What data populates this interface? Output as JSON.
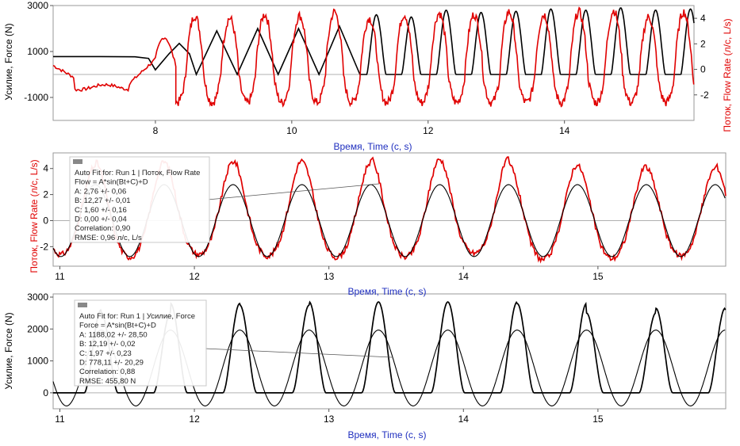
{
  "chart_data": [
    {
      "type": "line",
      "xlabel": "Время, Time (с, s)",
      "ylabel": "Усилие, Force (N)",
      "ylabel_right": "Поток, Flow Rate (л/с, L/s)",
      "xlim": [
        6.5,
        15.9
      ],
      "ylim": [
        -2000,
        3000
      ],
      "ylim_right": [
        -4,
        5
      ],
      "x_ticks": [
        8,
        10,
        12,
        14
      ],
      "y_ticks": [
        -1000,
        1000,
        3000
      ],
      "y_ticks_right": [
        -2,
        0,
        2,
        4
      ],
      "series": [
        {
          "axis": "left",
          "color": "#000000",
          "x": [
            6.5,
            7.2,
            7.7,
            7.9,
            8.0,
            8.2,
            8.35,
            8.5,
            8.6,
            8.9,
            9.2,
            9.5,
            9.8,
            10.1,
            10.4,
            10.7,
            11.0
          ],
          "y": [
            780,
            780,
            770,
            700,
            200,
            900,
            1350,
            900,
            0,
            1900,
            0,
            2000,
            0,
            2000,
            0,
            2100,
            0
          ],
          "period": 0.512,
          "phase": 11.1,
          "amplitude": 1300,
          "base_peaks": [
            2600,
            2500,
            2800,
            2700,
            2750,
            2850,
            2800,
            2900,
            2800,
            2850,
            2700,
            2700,
            2750,
            2600,
            2600,
            2500,
            2600
          ]
        },
        {
          "axis": "right",
          "color": "#e00000",
          "x": [
            6.5,
            6.8,
            7.0,
            7.3,
            7.6,
            7.9,
            8.1,
            8.3
          ],
          "y": [
            0.3,
            -0.6,
            -1.5,
            -1.4,
            -1.0,
            0.6,
            1.5,
            -2.5
          ],
          "period": 0.512,
          "phase": 8.45,
          "amplitude": 2.7,
          "peaks": [
            4.2,
            4.0,
            4.3,
            4.2,
            4.5,
            4.0,
            4.3,
            4.4,
            4.3,
            4.5,
            4.3,
            4.5,
            4.6,
            4.1,
            4.5,
            4.4
          ]
        }
      ]
    },
    {
      "type": "line",
      "xlabel": "Время, Time (с, s)",
      "ylabel": "Поток, Flow Rate (л/с, L/s)",
      "xlim": [
        10.95,
        15.95
      ],
      "ylim": [
        -3.5,
        5.2
      ],
      "x_ticks": [
        11,
        12,
        13,
        14,
        15
      ],
      "y_ticks": [
        -2,
        0,
        2,
        4
      ],
      "series": [
        {
          "name": "Flow Rate",
          "color": "#e00000",
          "data_kind": "measured",
          "peaks": [
            4.0,
            4.2,
            4.5,
            4.5,
            4.6,
            4.5,
            4.7,
            4.7,
            4.3,
            4.2
          ],
          "troughs": [
            -2.7,
            -2.6,
            -2.8,
            -2.6,
            -2.7,
            -2.8,
            -2.8,
            -2.5,
            -3.0,
            -2.9
          ]
        },
        {
          "name": "Auto Fit",
          "color": "#000000",
          "data_kind": "fit",
          "A": 2.76,
          "B": 12.27,
          "C": 1.6,
          "D": 0.0
        }
      ],
      "fit_box": {
        "title": "Auto Fit for: Run 1 | Поток, Flow Rate",
        "equation": "Flow = A*sin(Bt+C)+D",
        "lines": [
          "A: 2,76 +/- 0,06",
          "B: 12,27 +/- 0,01",
          "C: 1,60 +/- 0,16",
          "D: 0,00 +/- 0,04",
          "Correlation: 0,90",
          "RMSE: 0,96 л/с, L/s"
        ]
      }
    },
    {
      "type": "line",
      "xlabel": "Время, Time (с, s)",
      "ylabel": "Усилие, Force (N)",
      "xlim": [
        10.95,
        15.95
      ],
      "ylim": [
        -500,
        3100
      ],
      "x_ticks": [
        11,
        12,
        13,
        14,
        15
      ],
      "y_ticks": [
        0,
        1000,
        2000,
        3000
      ],
      "series": [
        {
          "name": "Force",
          "color": "#000000",
          "data_kind": "measured",
          "peaks": [
            2650,
            2600,
            2500,
            2800,
            2750,
            2850,
            2850,
            2850,
            2800,
            2500
          ]
        },
        {
          "name": "Auto Fit",
          "color": "#000000",
          "data_kind": "fit",
          "A": 1188.02,
          "B": 12.19,
          "C": 1.97,
          "D": 778.11
        }
      ],
      "fit_box": {
        "title": "Auto Fit for: Run 1 | Усилие, Force",
        "equation": "Force = A*sin(Bt+C)+D",
        "lines": [
          "A: 1188,02 +/- 28,50",
          "B: 12,19 +/- 0,02",
          "C: 1,97 +/- 0,23",
          "D: 778,11 +/- 20,29",
          "Correlation: 0,88",
          "RMSE: 455,80 N"
        ]
      }
    }
  ],
  "text": {
    "c1_xlabel": "Время, Time (с, s)",
    "c1_ylabel": "Усилие, Force (N)",
    "c1_ylabel_right": "Поток, Flow Rate (л/с, L/s)",
    "c2_xlabel": "Время, Time (с, s)",
    "c2_ylabel": "Поток, Flow Rate (л/с, L/s)",
    "c3_xlabel": "Время, Time (с, s)",
    "c3_ylabel": "Усилие, Force (N)"
  }
}
